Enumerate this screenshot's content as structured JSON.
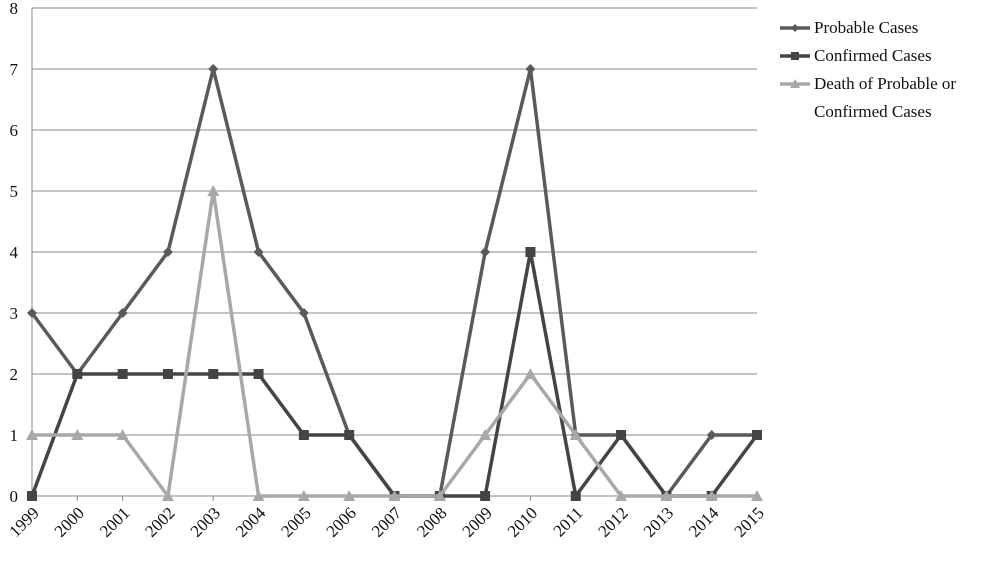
{
  "chart_data": {
    "type": "line",
    "categories": [
      "1999",
      "2000",
      "2001",
      "2002",
      "2003",
      "2004",
      "2005",
      "2006",
      "2007",
      "2008",
      "2009",
      "2010",
      "2011",
      "2012",
      "2013",
      "2014",
      "2015"
    ],
    "series": [
      {
        "name": "Probable Cases",
        "color": "#5a5a5a",
        "marker": "diamond",
        "values": [
          3,
          2,
          3,
          4,
          7,
          4,
          3,
          1,
          0,
          0,
          4,
          7,
          1,
          1,
          0,
          1,
          1
        ]
      },
      {
        "name": "Confirmed Cases",
        "color": "#444444",
        "marker": "square",
        "values": [
          0,
          2,
          2,
          2,
          2,
          2,
          1,
          1,
          0,
          0,
          0,
          4,
          0,
          1,
          0,
          0,
          1
        ]
      },
      {
        "name": "Death of Probable or Confirmed Cases",
        "color": "#a8a8a8",
        "marker": "triangle",
        "values": [
          1,
          1,
          1,
          0,
          5,
          0,
          0,
          0,
          0,
          0,
          1,
          2,
          1,
          0,
          0,
          0,
          0
        ]
      }
    ],
    "ylim": [
      0,
      8
    ],
    "yticks": [
      0,
      1,
      2,
      3,
      4,
      5,
      6,
      7,
      8
    ],
    "grid": true,
    "legend": "top-right"
  }
}
